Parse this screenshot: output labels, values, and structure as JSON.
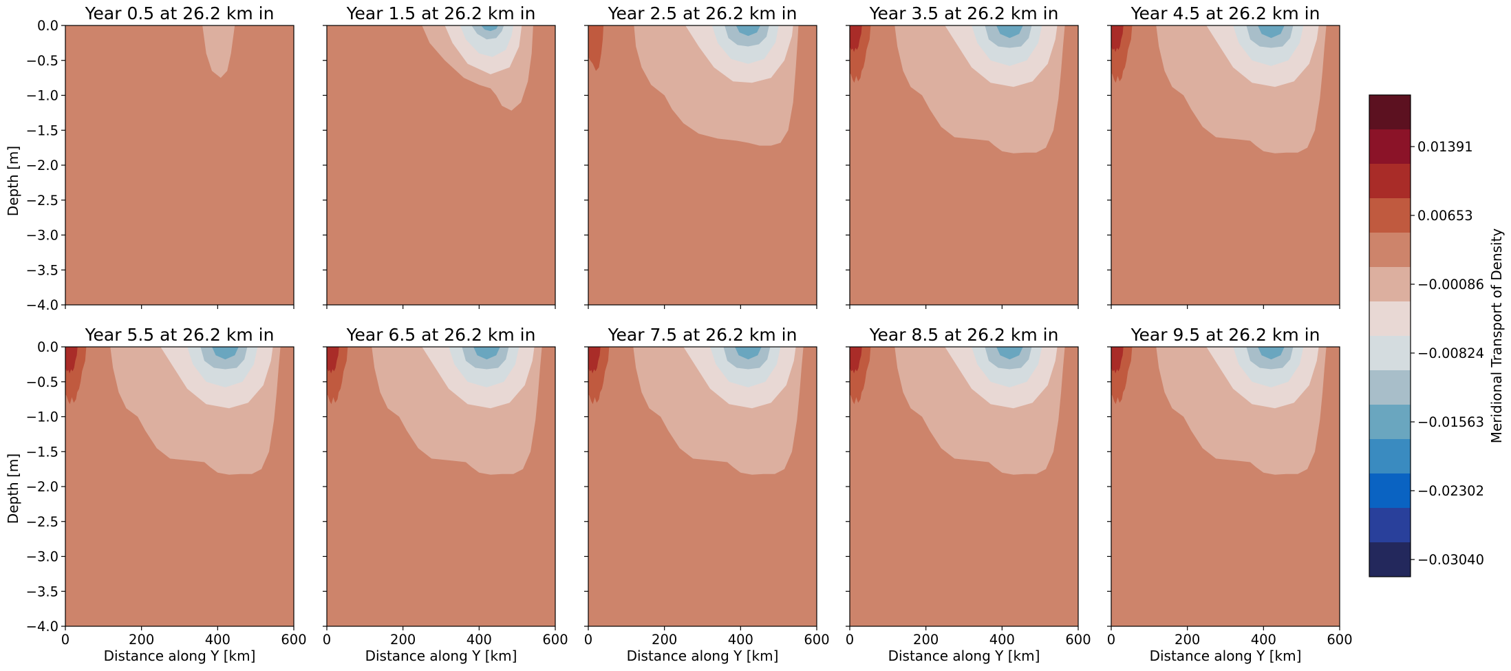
{
  "figure": {
    "xlabel": "Distance along Y [km]",
    "ylabel": "Depth [m]",
    "xticks": [
      "0",
      "200",
      "400",
      "600"
    ],
    "yticks": [
      "0.0",
      "−0.5",
      "−1.0",
      "−1.5",
      "−2.0",
      "−2.5",
      "−3.0",
      "−3.5",
      "−4.0"
    ],
    "colorbar": {
      "label": "Meridional Transport of Density",
      "ticks": [
        "0.01391",
        "0.00653",
        "−0.00086",
        "−0.00824",
        "−0.01563",
        "−0.02302",
        "−0.03040"
      ]
    }
  },
  "chart_data": {
    "type": "contourf",
    "xlim": [
      0,
      600
    ],
    "ylim": [
      -4.0,
      0.0
    ],
    "x_unit": "km",
    "y_unit": "m",
    "colormap": "diverging blue-white-red (balance)",
    "levels": [
      {
        "label": "< -0.03040",
        "color": "#23285c"
      },
      {
        "label": "-0.03040",
        "color": "#29409b"
      },
      {
        "label": "",
        "color": "#0a63c2"
      },
      {
        "label": "-0.02302",
        "color": "#3a8bc0"
      },
      {
        "label": "",
        "color": "#6aa6bf"
      },
      {
        "label": "-0.01563",
        "color": "#a8bec9"
      },
      {
        "label": "",
        "color": "#d4dcdf"
      },
      {
        "label": "-0.00824",
        "color": "#e8d8d4"
      },
      {
        "label": "",
        "color": "#dcaf9f"
      },
      {
        "label": "-0.00086",
        "color": "#cd846b"
      },
      {
        "label": "",
        "color": "#c05a3f"
      },
      {
        "label": "0.00653",
        "color": "#a92c28"
      },
      {
        "label": "",
        "color": "#8b1328"
      },
      {
        "label": "0.01391",
        "color": "#5c1120"
      }
    ],
    "background_level_color": "#cd846b",
    "panels": [
      {
        "title": "Year 0.5 at 26.2 km in",
        "year": 0.5,
        "lowest_level_index": 8,
        "west_boundary_max_level": 9,
        "contour_depth_m": [
          {
            "level": 8,
            "max_depth": -0.75
          }
        ]
      },
      {
        "title": "Year 1.5 at 26.2 km in",
        "year": 1.5,
        "lowest_level_index": 4,
        "west_boundary_max_level": 9,
        "contour_depth_m": [
          {
            "level": 8,
            "max_depth": -1.2
          },
          {
            "level": 7,
            "max_depth": -0.7
          },
          {
            "level": 6,
            "max_depth": -0.45
          },
          {
            "level": 5,
            "max_depth": -0.2
          }
        ]
      },
      {
        "title": "Year 2.5 at 26.2 km in",
        "year": 2.5,
        "lowest_level_index": 4,
        "west_boundary_max_level": 10,
        "contour_depth_m": [
          {
            "level": 8,
            "max_depth": -1.72
          },
          {
            "level": 7,
            "max_depth": -0.82
          },
          {
            "level": 6,
            "max_depth": -0.55
          },
          {
            "level": 5,
            "max_depth": -0.3
          }
        ]
      },
      {
        "title": "Year 3.5 at 26.2 km in",
        "year": 3.5,
        "lowest_level_index": 4,
        "west_boundary_max_level": 11,
        "contour_depth_m": [
          {
            "level": 8,
            "max_depth": -1.82
          },
          {
            "level": 7,
            "max_depth": -0.88
          },
          {
            "level": 6,
            "max_depth": -0.58
          },
          {
            "level": 5,
            "max_depth": -0.32
          }
        ]
      },
      {
        "title": "Year 4.5 at 26.2 km in",
        "year": 4.5,
        "lowest_level_index": 4,
        "west_boundary_max_level": 11,
        "contour_depth_m": [
          {
            "level": 8,
            "max_depth": -1.83
          },
          {
            "level": 7,
            "max_depth": -0.88
          },
          {
            "level": 6,
            "max_depth": -0.58
          },
          {
            "level": 5,
            "max_depth": -0.32
          }
        ]
      },
      {
        "title": "Year 5.5 at 26.2 km in",
        "year": 5.5,
        "lowest_level_index": 4,
        "west_boundary_max_level": 11,
        "contour_depth_m": [
          {
            "level": 8,
            "max_depth": -1.83
          },
          {
            "level": 7,
            "max_depth": -0.88
          },
          {
            "level": 6,
            "max_depth": -0.58
          },
          {
            "level": 5,
            "max_depth": -0.32
          }
        ]
      },
      {
        "title": "Year 6.5 at 26.2 km in",
        "year": 6.5,
        "lowest_level_index": 4,
        "west_boundary_max_level": 11,
        "contour_depth_m": [
          {
            "level": 8,
            "max_depth": -1.83
          },
          {
            "level": 7,
            "max_depth": -0.88
          },
          {
            "level": 6,
            "max_depth": -0.58
          },
          {
            "level": 5,
            "max_depth": -0.32
          }
        ]
      },
      {
        "title": "Year 7.5 at 26.2 km in",
        "year": 7.5,
        "lowest_level_index": 4,
        "west_boundary_max_level": 11,
        "contour_depth_m": [
          {
            "level": 8,
            "max_depth": -1.83
          },
          {
            "level": 7,
            "max_depth": -0.88
          },
          {
            "level": 6,
            "max_depth": -0.58
          },
          {
            "level": 5,
            "max_depth": -0.32
          }
        ]
      },
      {
        "title": "Year 8.5 at 26.2 km in",
        "year": 8.5,
        "lowest_level_index": 4,
        "west_boundary_max_level": 11,
        "contour_depth_m": [
          {
            "level": 8,
            "max_depth": -1.83
          },
          {
            "level": 7,
            "max_depth": -0.88
          },
          {
            "level": 6,
            "max_depth": -0.58
          },
          {
            "level": 5,
            "max_depth": -0.32
          }
        ]
      },
      {
        "title": "Year 9.5 at 26.2 km in",
        "year": 9.5,
        "lowest_level_index": 4,
        "west_boundary_max_level": 11,
        "contour_depth_m": [
          {
            "level": 8,
            "max_depth": -1.83
          },
          {
            "level": 7,
            "max_depth": -0.88
          },
          {
            "level": 6,
            "max_depth": -0.58
          },
          {
            "level": 5,
            "max_depth": -0.32
          }
        ]
      }
    ]
  }
}
